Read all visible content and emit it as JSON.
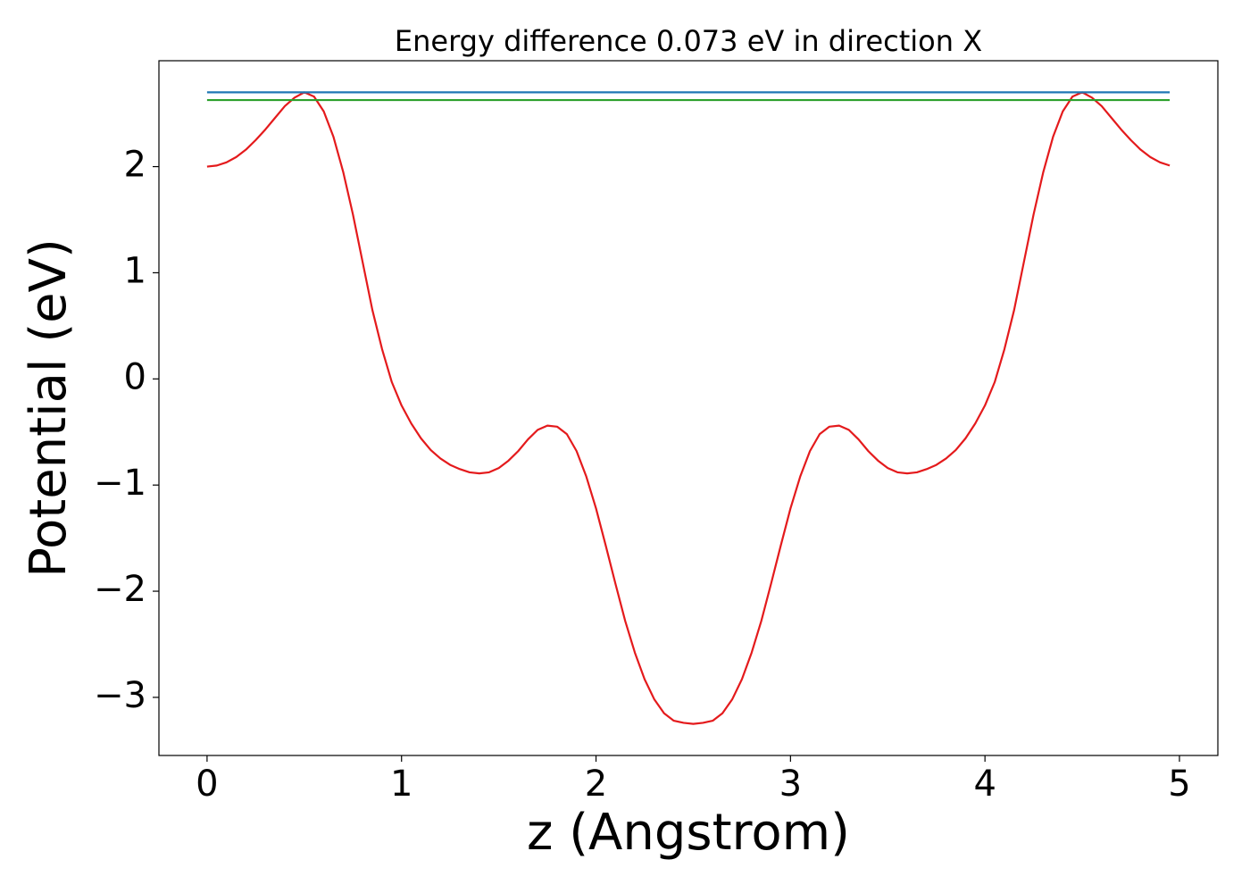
{
  "chart_data": {
    "type": "line",
    "title": "Energy difference 0.073 eV in direction X",
    "xlabel": "z (Angstrom)",
    "ylabel": "Potential (eV)",
    "series": [
      {
        "color": "#e41a1c",
        "x": [
          0,
          0.05,
          0.1,
          0.15,
          0.2,
          0.25,
          0.3,
          0.35,
          0.4,
          0.45,
          0.5,
          0.55,
          0.6,
          0.65,
          0.7,
          0.75,
          0.8,
          0.85,
          0.9,
          0.95,
          1.0,
          1.05,
          1.1,
          1.15,
          1.2,
          1.25,
          1.3,
          1.35,
          1.4,
          1.45,
          1.5,
          1.55,
          1.6,
          1.65,
          1.7,
          1.75,
          1.8,
          1.85,
          1.9,
          1.95,
          2.0,
          2.05,
          2.1,
          2.15,
          2.2,
          2.25,
          2.3,
          2.35,
          2.4,
          2.45,
          2.5,
          2.55,
          2.6,
          2.65,
          2.7,
          2.75,
          2.8,
          2.85,
          2.9,
          2.95,
          3.0,
          3.05,
          3.1,
          3.15,
          3.2,
          3.25,
          3.3,
          3.35,
          3.4,
          3.45,
          3.5,
          3.55,
          3.6,
          3.65,
          3.7,
          3.75,
          3.8,
          3.85,
          3.9,
          3.95,
          4.0,
          4.05,
          4.1,
          4.15,
          4.2,
          4.25,
          4.3,
          4.35,
          4.4,
          4.45,
          4.5,
          4.55,
          4.6,
          4.65,
          4.7,
          4.75,
          4.8,
          4.85,
          4.9,
          4.95
        ],
        "values": [
          2.0,
          2.01,
          2.04,
          2.09,
          2.16,
          2.25,
          2.35,
          2.46,
          2.57,
          2.65,
          2.7,
          2.66,
          2.52,
          2.28,
          1.95,
          1.55,
          1.1,
          0.65,
          0.28,
          -0.03,
          -0.25,
          -0.42,
          -0.56,
          -0.67,
          -0.75,
          -0.81,
          -0.85,
          -0.88,
          -0.89,
          -0.88,
          -0.84,
          -0.77,
          -0.68,
          -0.57,
          -0.48,
          -0.44,
          -0.45,
          -0.52,
          -0.68,
          -0.92,
          -1.22,
          -1.57,
          -1.93,
          -2.28,
          -2.58,
          -2.83,
          -3.02,
          -3.15,
          -3.22,
          -3.24,
          -3.25,
          -3.24,
          -3.22,
          -3.15,
          -3.02,
          -2.83,
          -2.58,
          -2.28,
          -1.93,
          -1.57,
          -1.22,
          -0.92,
          -0.68,
          -0.52,
          -0.45,
          -0.44,
          -0.48,
          -0.57,
          -0.68,
          -0.77,
          -0.84,
          -0.88,
          -0.89,
          -0.88,
          -0.85,
          -0.81,
          -0.75,
          -0.67,
          -0.56,
          -0.42,
          -0.25,
          -0.03,
          0.28,
          0.65,
          1.1,
          1.55,
          1.95,
          2.28,
          2.52,
          2.66,
          2.7,
          2.65,
          2.57,
          2.46,
          2.35,
          2.25,
          2.16,
          2.09,
          2.04,
          2.01
        ]
      },
      {
        "color": "#1f77b4",
        "x": [
          0,
          4.95
        ],
        "values": [
          2.7,
          2.7
        ]
      },
      {
        "color": "#2ca02c",
        "x": [
          0,
          4.95
        ],
        "values": [
          2.627,
          2.627
        ]
      }
    ],
    "xlim": [
      -0.2475,
      5.1975
    ],
    "xticks": [
      0,
      1,
      2,
      3,
      4,
      5
    ],
    "ylim": [
      -3.5475,
      2.9975
    ],
    "yticks": [
      {
        "value": -3,
        "label": "−3"
      },
      {
        "value": -2,
        "label": "−2"
      },
      {
        "value": -1,
        "label": "−1"
      },
      0,
      1,
      2
    ],
    "grid": false
  }
}
